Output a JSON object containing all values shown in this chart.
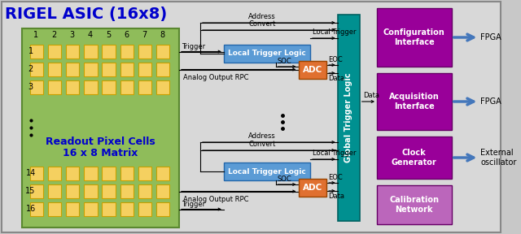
{
  "title": "RIGEL ASIC (16x8)",
  "title_color": "#0000cc",
  "bg_color": "#c8c8c8",
  "panel_color": "#d8d8d8",
  "pixel_bg": "#8fbc5a",
  "pixel_color": "#f5d060",
  "pixel_border": "#c8a000",
  "ltl_color": "#5b9bd5",
  "adc_color": "#e07030",
  "gtl_color": "#009090",
  "iface_colors": [
    "#990099",
    "#990099",
    "#990099",
    "#bb66bb"
  ],
  "arrow_color": "#4477bb",
  "col_labels": [
    "1",
    "2",
    "3",
    "4",
    "5",
    "6",
    "7",
    "8"
  ],
  "row_labels_top": [
    "1",
    "2",
    "3"
  ],
  "row_labels_bot": [
    "14",
    "15",
    "16"
  ],
  "ltl_label": "Local Trigger Logic",
  "gtl_label": "Global Trigger Logic",
  "adc_label": "ADC",
  "iface_labels": [
    "Configuration\nInterface",
    "Acquisition\nInterface",
    "Clock\nGenerator",
    "Calibration\nNetwork"
  ],
  "fpga_labels": [
    "FPGA",
    "FPGA",
    "External\noscillator"
  ]
}
